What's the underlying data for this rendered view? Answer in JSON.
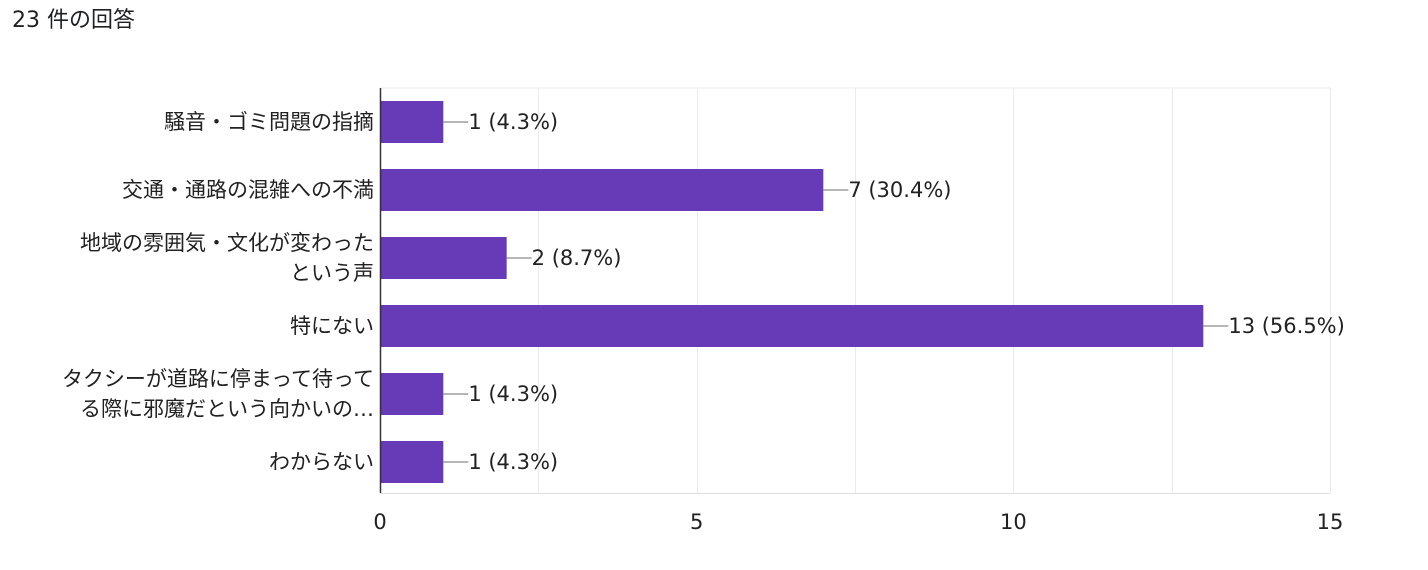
{
  "header": {
    "response_count": "23 件の回答"
  },
  "chart_data": {
    "type": "bar",
    "orientation": "horizontal",
    "title": "",
    "xlabel": "",
    "ylabel": "",
    "xlim": [
      0,
      15
    ],
    "ticks": [
      0,
      5,
      10,
      15
    ],
    "grid": true,
    "bar_color": "#673ab7",
    "categories": [
      [
        "騒音・ゴミ問題の指摘"
      ],
      [
        "交通・通路の混雑への不満"
      ],
      [
        "地域の雰囲気・文化が変わった",
        "という声"
      ],
      [
        "特にない"
      ],
      [
        "タクシーが道路に停まって待って",
        "る際に邪魔だという向かいの…"
      ],
      [
        "わからない"
      ]
    ],
    "values": [
      1,
      7,
      2,
      13,
      1,
      1
    ],
    "data_labels": [
      "1 (4.3%)",
      "7 (30.4%)",
      "2 (8.7%)",
      "13 (56.5%)",
      "1 (4.3%)",
      "1 (4.3%)"
    ]
  }
}
